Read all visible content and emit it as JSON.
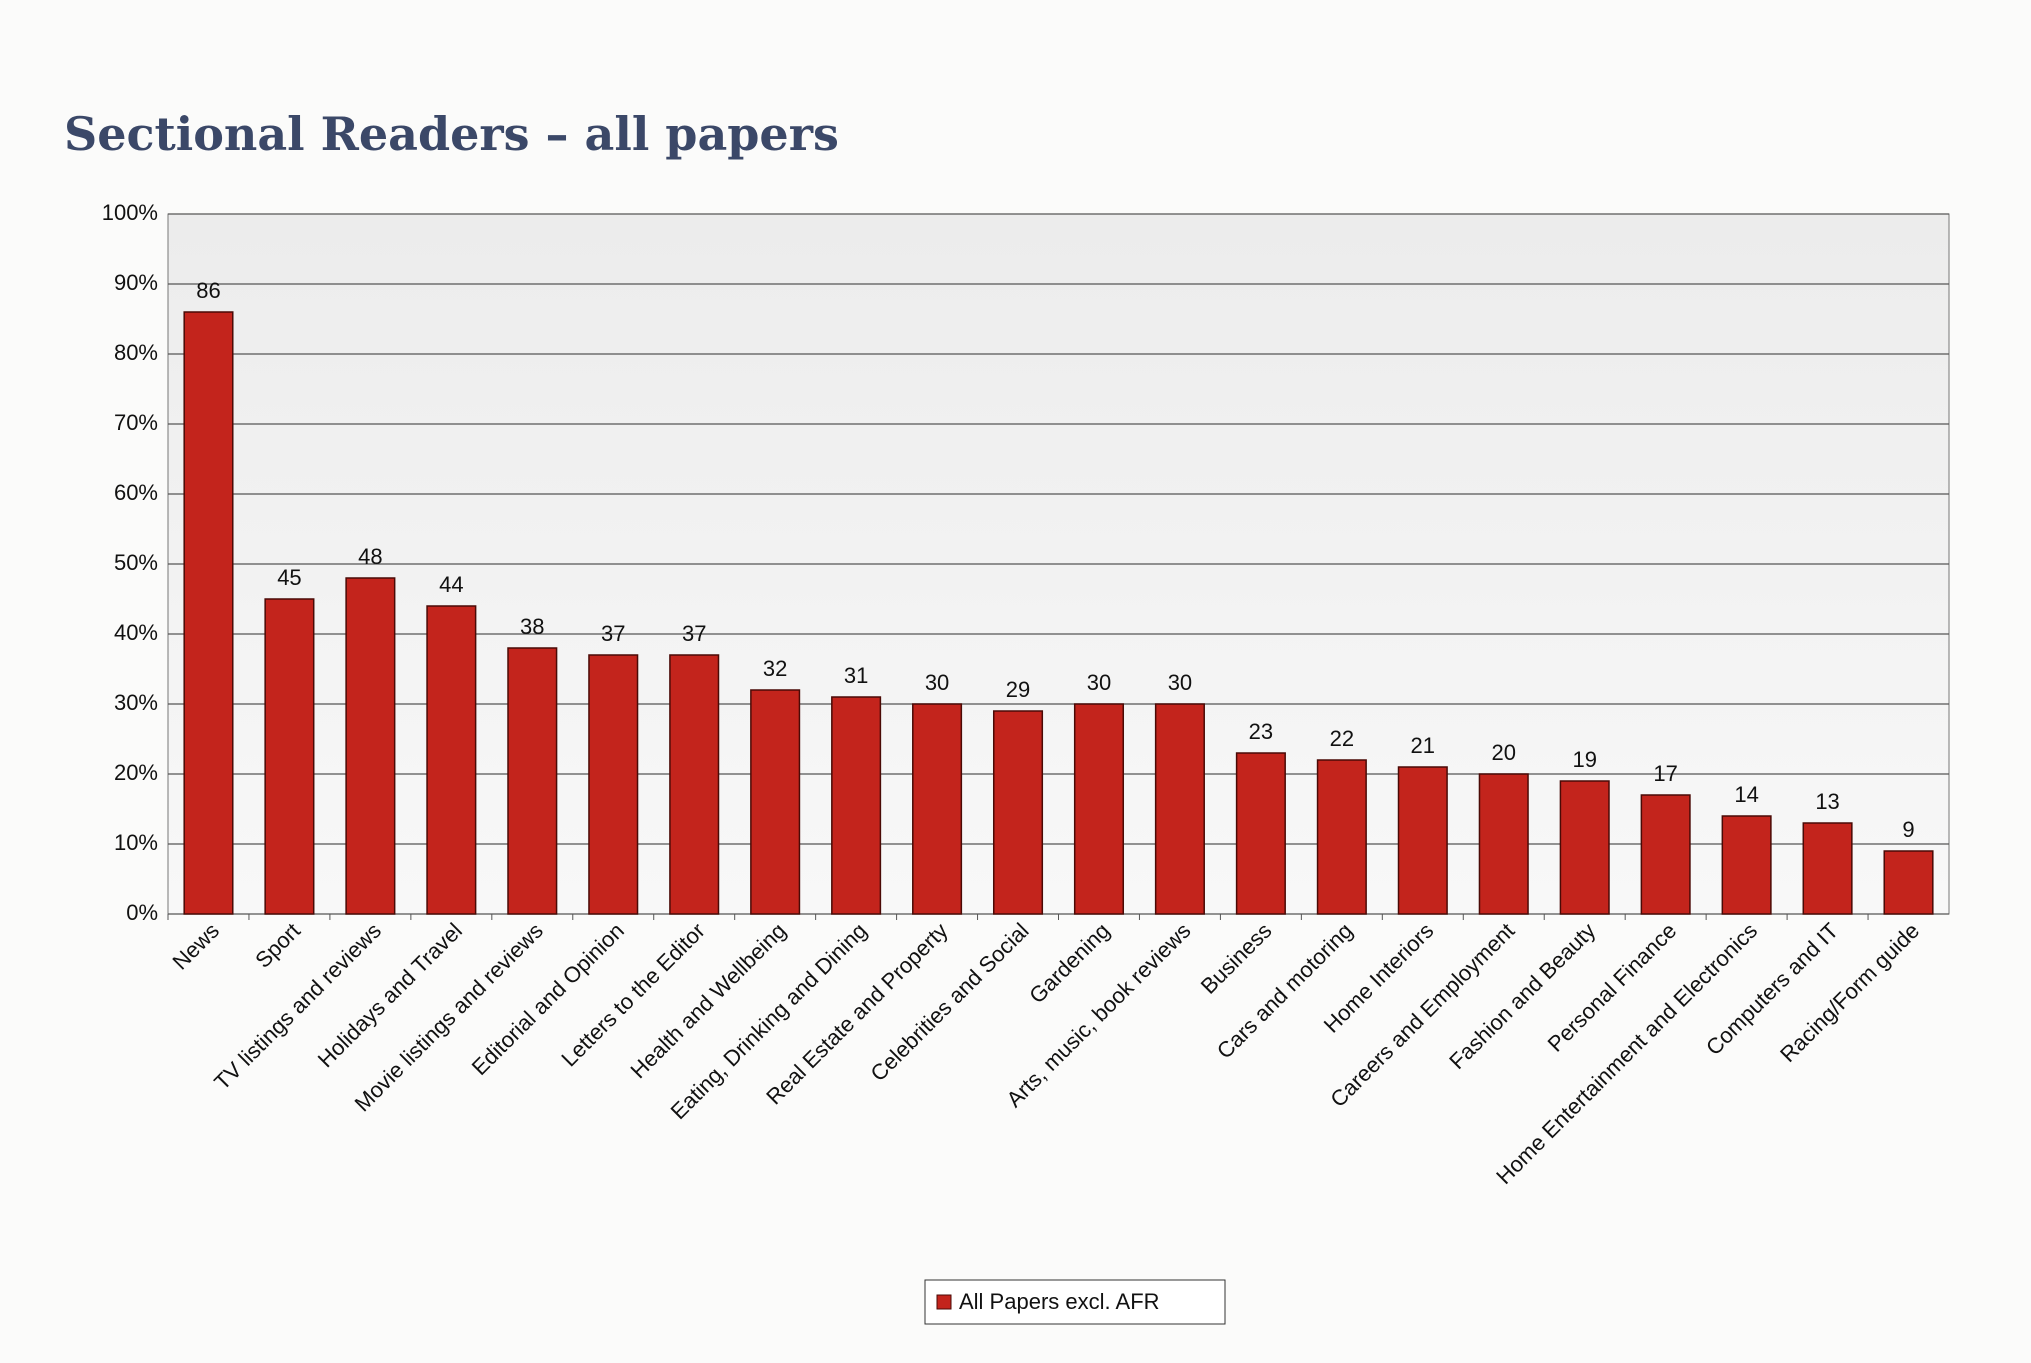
{
  "chart_data": {
    "type": "bar",
    "title": "Sectional Readers – all papers",
    "categories": [
      "News",
      "Sport",
      "TV listings and reviews",
      "Holidays and Travel",
      "Movie listings and reviews",
      "Editorial and Opinion",
      "Letters to the Editor",
      "Health and Wellbeing",
      "Eating, Drinking and Dining",
      "Real Estate and Property",
      "Celebrities and Social",
      "Gardening",
      "Arts, music, book reviews",
      "Business",
      "Cars and motoring",
      "Home Interiors",
      "Careers and Employment",
      "Fashion and Beauty",
      "Personal Finance",
      "Home Entertainment and Electronics",
      "Computers and IT",
      "Racing/Form guide"
    ],
    "series": [
      {
        "name": "All Papers excl. AFR",
        "color": "#c3241c",
        "values": [
          86,
          45,
          48,
          44,
          38,
          37,
          37,
          32,
          31,
          30,
          29,
          30,
          30,
          23,
          22,
          21,
          20,
          19,
          17,
          14,
          13,
          9
        ]
      }
    ],
    "ylim": [
      0,
      100
    ],
    "yticks": [
      {
        "value": 0,
        "label": "0%"
      },
      {
        "value": 10,
        "label": "10%"
      },
      {
        "value": 20,
        "label": "20%"
      },
      {
        "value": 30,
        "label": "30%"
      },
      {
        "value": 40,
        "label": "40%"
      },
      {
        "value": 50,
        "label": "50%"
      },
      {
        "value": 60,
        "label": "60%"
      },
      {
        "value": 70,
        "label": "70%"
      },
      {
        "value": 80,
        "label": "80%"
      },
      {
        "value": 90,
        "label": "90%"
      },
      {
        "value": 100,
        "label": "100%"
      }
    ],
    "grid": true,
    "legend": "bottom"
  }
}
